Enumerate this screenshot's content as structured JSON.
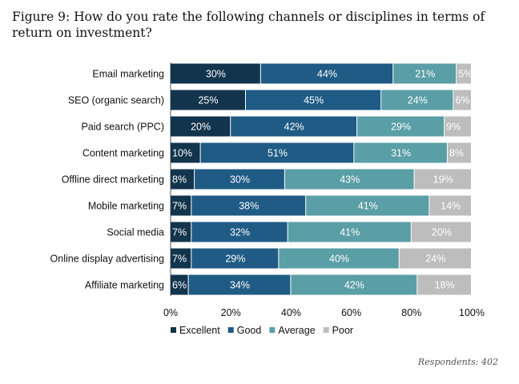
{
  "title": "Figure 9: How do you rate the following channels or disciplines in terms of return on investment?",
  "footnote": "Respondents: 402",
  "colors": {
    "Excellent": "#13344d",
    "Good": "#1f5b85",
    "Average": "#5a9ea6",
    "Poor": "#bdbdbd"
  },
  "chart_data": {
    "type": "bar",
    "orientation": "horizontal",
    "stacked": true,
    "categories": [
      "Email marketing",
      "SEO (organic search)",
      "Paid search (PPC)",
      "Content marketing",
      "Offline direct marketing",
      "Mobile marketing",
      "Social media",
      "Online display advertising",
      "Affiliate marketing"
    ],
    "series": [
      {
        "name": "Excellent",
        "values": [
          30,
          25,
          20,
          10,
          8,
          7,
          7,
          7,
          6
        ]
      },
      {
        "name": "Good",
        "values": [
          44,
          45,
          42,
          51,
          30,
          38,
          32,
          29,
          34
        ]
      },
      {
        "name": "Average",
        "values": [
          21,
          24,
          29,
          31,
          43,
          41,
          41,
          40,
          42
        ]
      },
      {
        "name": "Poor",
        "values": [
          5,
          6,
          9,
          8,
          19,
          14,
          20,
          24,
          18
        ]
      }
    ],
    "xlim": [
      0,
      100
    ],
    "xticks": [
      "0%",
      "20%",
      "40%",
      "60%",
      "80%",
      "100%"
    ],
    "legend_position": "bottom",
    "grid": false
  }
}
